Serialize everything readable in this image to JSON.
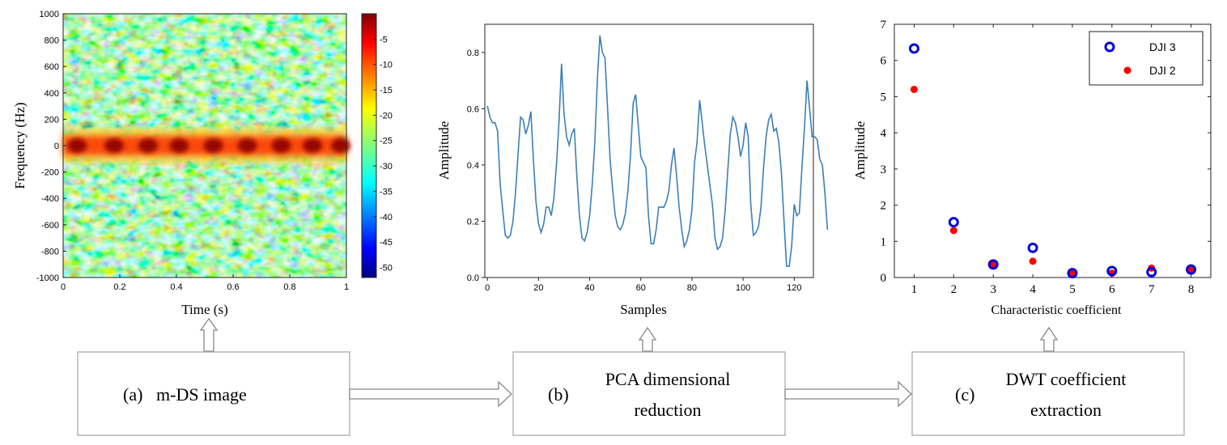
{
  "colors": {
    "line": "#3b7fb8",
    "open_marker": "#0000dd",
    "filled_marker": "#ff0000",
    "box_border": "#aaaaaa",
    "arrow": "#888888"
  },
  "blocks": [
    {
      "letter": "(a)",
      "text_lines": [
        "m-DS image"
      ]
    },
    {
      "letter": "(b)",
      "text_lines": [
        "PCA dimensional",
        "reduction"
      ]
    },
    {
      "letter": "(c)",
      "text_lines": [
        "DWT coefficient",
        "extraction"
      ]
    }
  ],
  "chart_data": [
    {
      "type": "heatmap",
      "xlabel": "Time (s)",
      "ylabel": "Frequency (Hz)",
      "xlim": [
        0,
        1
      ],
      "ylim": [
        -1000,
        1000
      ],
      "xticks": [
        "0",
        "0.2",
        "0.4",
        "0.6",
        "0.8",
        "1"
      ],
      "yticks": [
        "1000",
        "800",
        "600",
        "400",
        "200",
        "0",
        "-200",
        "-400",
        "-600",
        "-800",
        "-1000"
      ],
      "colorbar_range": [
        -52,
        0
      ],
      "colorbar_ticks": [
        "-5",
        "-10",
        "-15",
        "-20",
        "-25",
        "-30",
        "-35",
        "-40",
        "-45",
        "-50"
      ],
      "description_band_center_hz": 0,
      "hotspot_times": [
        0.05,
        0.18,
        0.3,
        0.41,
        0.53,
        0.65,
        0.77,
        0.88,
        0.98
      ]
    },
    {
      "type": "line",
      "xlabel": "Samples",
      "ylabel": "Amplitude",
      "xlim": [
        0,
        127
      ],
      "ylim": [
        0,
        0.9
      ],
      "xticks": [
        "0",
        "20",
        "40",
        "60",
        "80",
        "100",
        "120"
      ],
      "yticks": [
        "0.0",
        "0.2",
        "0.4",
        "0.6",
        "0.8"
      ],
      "values": [
        0.61,
        0.57,
        0.55,
        0.55,
        0.52,
        0.33,
        0.24,
        0.15,
        0.14,
        0.15,
        0.2,
        0.3,
        0.44,
        0.57,
        0.56,
        0.51,
        0.54,
        0.59,
        0.42,
        0.27,
        0.19,
        0.16,
        0.19,
        0.25,
        0.25,
        0.22,
        0.28,
        0.4,
        0.55,
        0.76,
        0.58,
        0.5,
        0.47,
        0.51,
        0.53,
        0.36,
        0.22,
        0.14,
        0.13,
        0.16,
        0.22,
        0.33,
        0.48,
        0.7,
        0.86,
        0.8,
        0.78,
        0.6,
        0.42,
        0.31,
        0.22,
        0.18,
        0.17,
        0.19,
        0.23,
        0.31,
        0.44,
        0.62,
        0.65,
        0.54,
        0.43,
        0.41,
        0.39,
        0.22,
        0.12,
        0.12,
        0.17,
        0.25,
        0.25,
        0.25,
        0.27,
        0.31,
        0.4,
        0.46,
        0.36,
        0.25,
        0.17,
        0.11,
        0.13,
        0.17,
        0.24,
        0.41,
        0.48,
        0.63,
        0.55,
        0.47,
        0.4,
        0.33,
        0.26,
        0.14,
        0.1,
        0.11,
        0.14,
        0.24,
        0.38,
        0.51,
        0.57,
        0.55,
        0.5,
        0.43,
        0.47,
        0.55,
        0.5,
        0.26,
        0.15,
        0.16,
        0.18,
        0.25,
        0.39,
        0.5,
        0.56,
        0.58,
        0.52,
        0.53,
        0.48,
        0.37,
        0.2,
        0.04,
        0.04,
        0.11,
        0.26,
        0.22,
        0.23,
        0.39,
        0.53,
        0.7,
        0.6,
        0.5,
        0.5,
        0.49,
        0.42,
        0.4,
        0.3,
        0.17
      ]
    },
    {
      "type": "scatter",
      "xlabel": "Characteristic coefficient",
      "ylabel": "Amplitude",
      "xlim": [
        0.5,
        8.5
      ],
      "ylim": [
        0,
        7
      ],
      "xticks": [
        "1",
        "2",
        "3",
        "4",
        "5",
        "6",
        "7",
        "8"
      ],
      "yticks": [
        "0",
        "1",
        "2",
        "3",
        "4",
        "5",
        "6",
        "7"
      ],
      "legend_position": "top-right",
      "series": [
        {
          "name": "DJI 3",
          "marker": "open-circle",
          "x": [
            1,
            2,
            3,
            4,
            5,
            6,
            7,
            8
          ],
          "y": [
            6.33,
            1.53,
            0.36,
            0.82,
            0.12,
            0.18,
            0.15,
            0.22
          ]
        },
        {
          "name": "DJI 2",
          "marker": "filled-circle",
          "x": [
            1,
            2,
            3,
            4,
            5,
            6,
            7,
            8
          ],
          "y": [
            5.2,
            1.3,
            0.35,
            0.45,
            0.12,
            0.12,
            0.26,
            0.2
          ]
        }
      ]
    }
  ]
}
